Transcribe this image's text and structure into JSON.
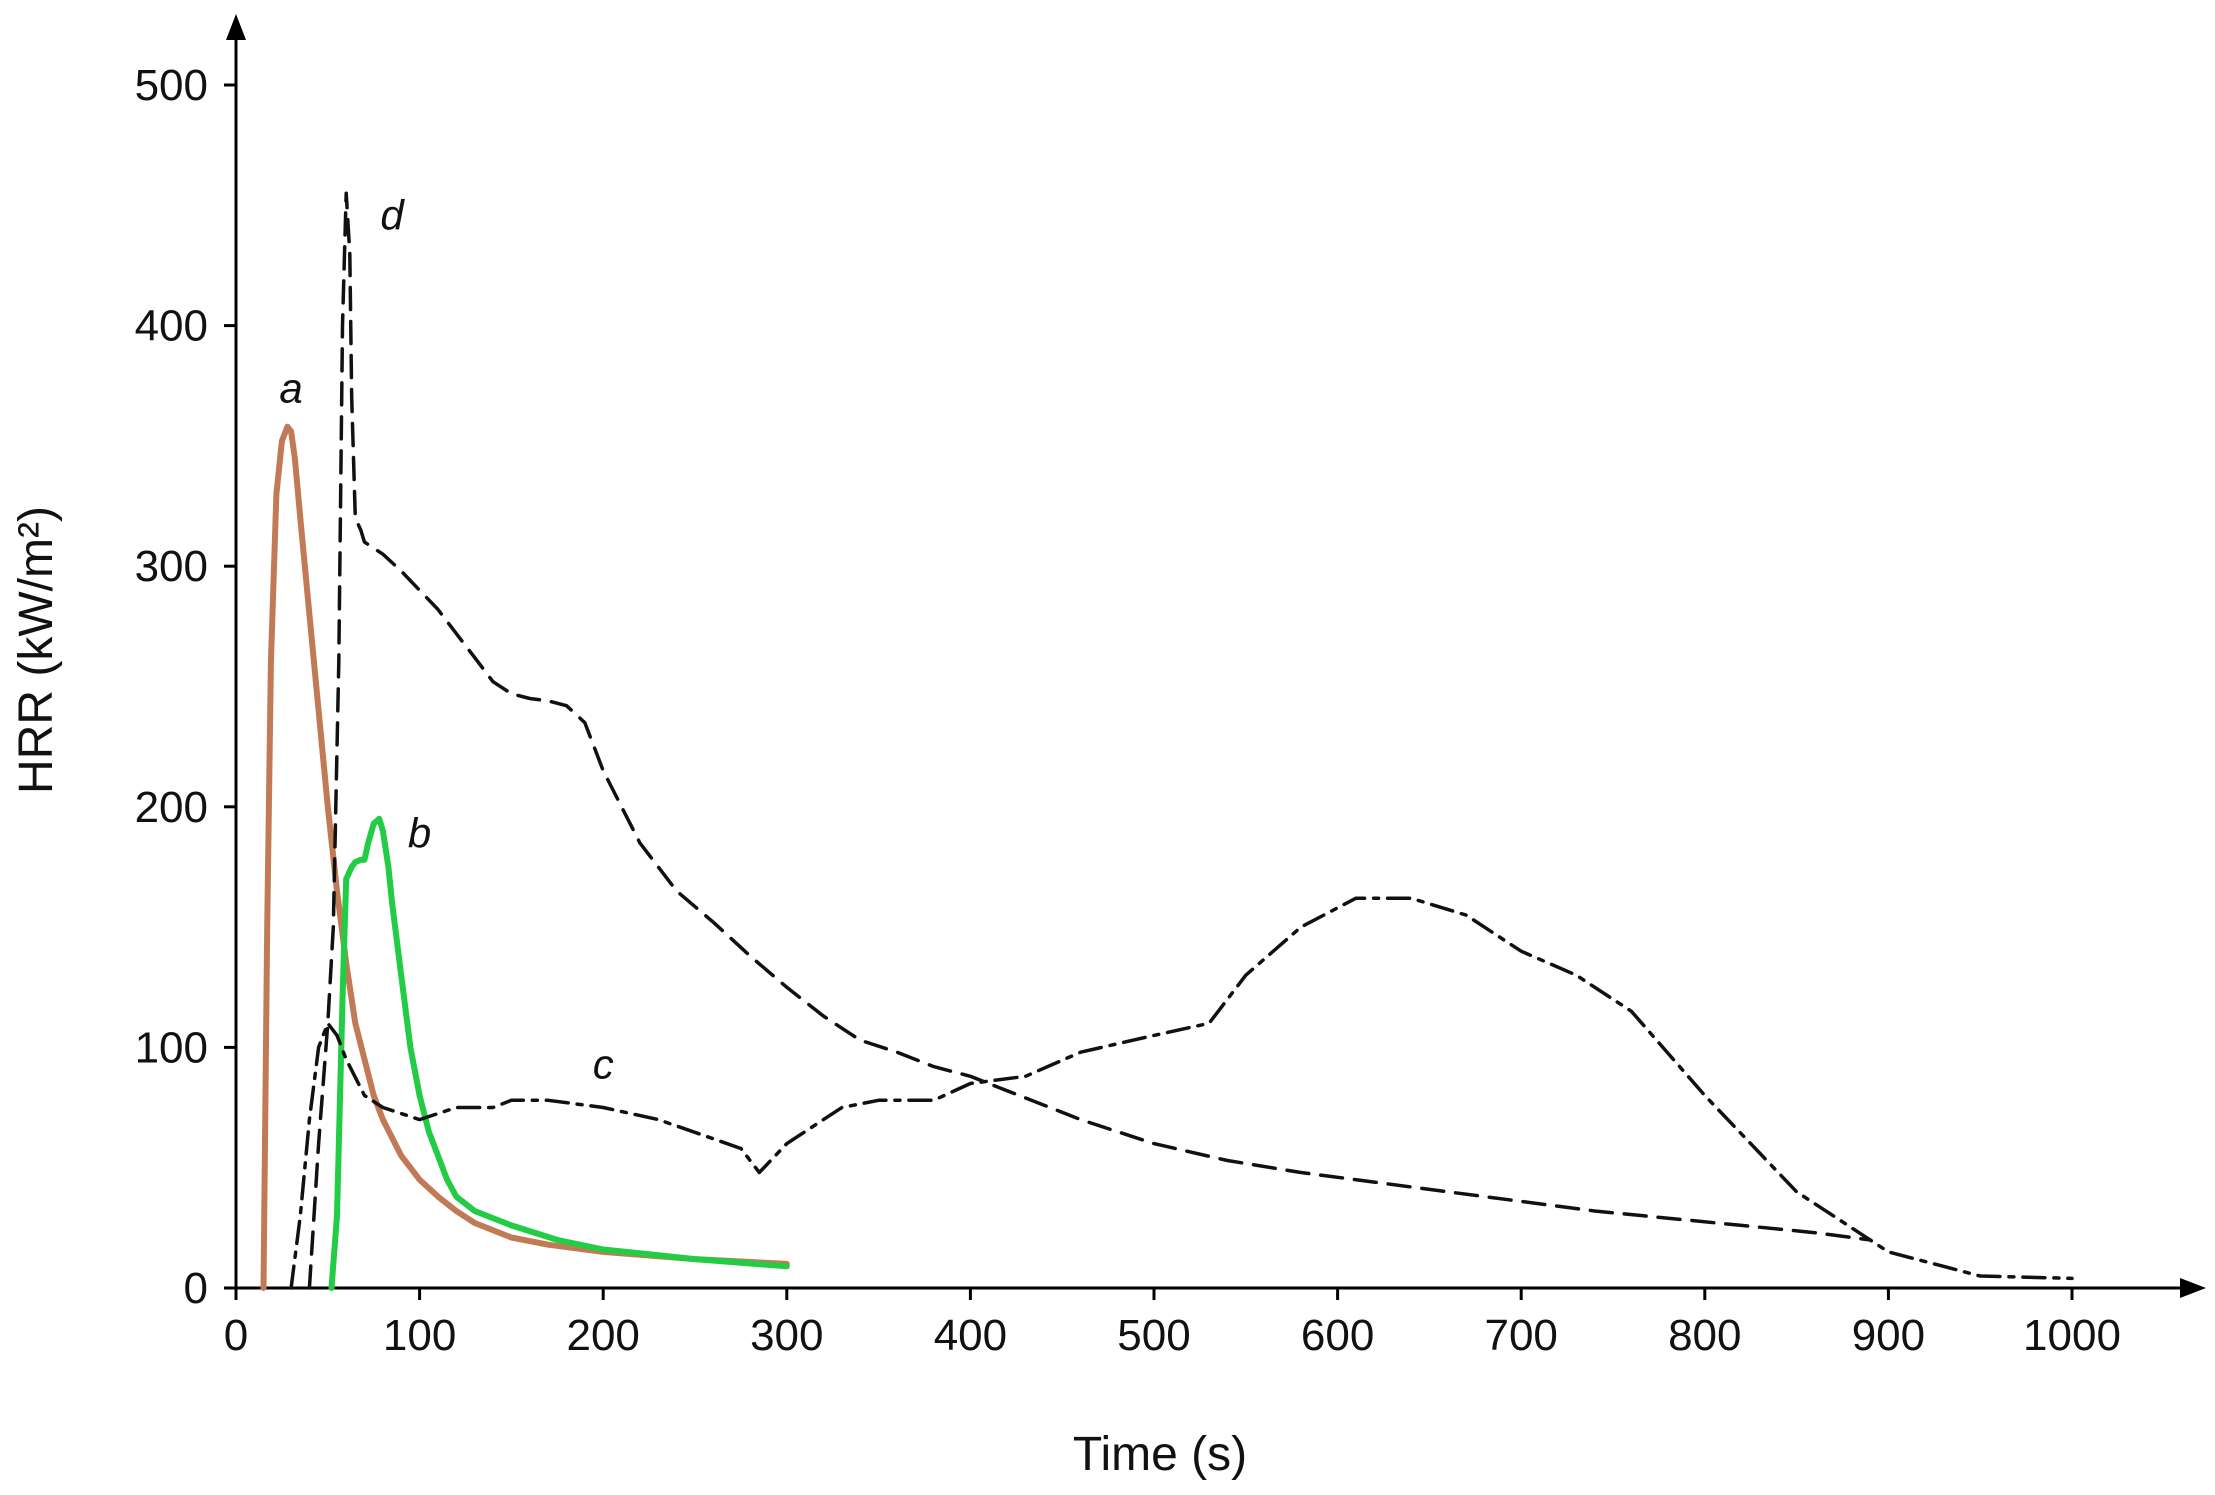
{
  "chart_data": {
    "type": "line",
    "title": "",
    "xlabel": "Time (s)",
    "ylabel": "HRR (kW/m²)",
    "xlim": [
      0,
      1060
    ],
    "ylim": [
      0,
      500
    ],
    "xticks": [
      0,
      100,
      200,
      300,
      400,
      500,
      600,
      700,
      800,
      900,
      1000
    ],
    "yticks": [
      0,
      100,
      200,
      300,
      400,
      500
    ],
    "grid": false,
    "series": [
      {
        "name": "a",
        "color": "#c17a55",
        "style": "solid",
        "x": [
          15,
          17,
          19,
          22,
          25,
          28,
          30,
          32,
          35,
          40,
          45,
          50,
          55,
          60,
          65,
          70,
          75,
          80,
          90,
          100,
          110,
          120,
          130,
          150,
          170,
          200,
          250,
          300
        ],
        "y": [
          0,
          150,
          260,
          330,
          352,
          358,
          356,
          345,
          320,
          280,
          240,
          200,
          165,
          135,
          110,
          95,
          80,
          70,
          55,
          45,
          38,
          32,
          27,
          21,
          18,
          15,
          12,
          10
        ]
      },
      {
        "name": "b",
        "color": "#22cc44",
        "style": "solid",
        "x": [
          52,
          55,
          58,
          60,
          63,
          65,
          68,
          70,
          72,
          75,
          78,
          80,
          83,
          85,
          90,
          95,
          100,
          105,
          110,
          115,
          120,
          130,
          150,
          175,
          200,
          250,
          300
        ],
        "y": [
          0,
          30,
          120,
          170,
          175,
          177,
          178,
          178,
          185,
          193,
          195,
          190,
          175,
          160,
          130,
          100,
          80,
          65,
          55,
          45,
          38,
          32,
          26,
          20,
          16,
          12,
          9
        ]
      },
      {
        "name": "c",
        "color": "#111111",
        "style": "dashdot",
        "x": [
          30,
          35,
          40,
          45,
          50,
          55,
          60,
          70,
          80,
          100,
          120,
          140,
          150,
          170,
          200,
          230,
          260,
          275,
          285,
          300,
          330,
          350,
          380,
          400,
          430,
          460,
          500,
          530,
          550,
          580,
          610,
          640,
          670,
          700,
          730,
          760,
          800,
          850,
          900,
          950,
          1000
        ],
        "y": [
          0,
          30,
          70,
          100,
          110,
          105,
          95,
          80,
          75,
          70,
          75,
          75,
          78,
          78,
          75,
          70,
          62,
          58,
          48,
          60,
          75,
          78,
          78,
          85,
          88,
          98,
          105,
          110,
          130,
          150,
          162,
          162,
          155,
          140,
          130,
          115,
          80,
          40,
          15,
          5,
          4
        ]
      },
      {
        "name": "d",
        "color": "#111111",
        "style": "dashed",
        "x": [
          40,
          45,
          50,
          53,
          56,
          58,
          60,
          62,
          63,
          65,
          68,
          70,
          80,
          90,
          100,
          110,
          120,
          130,
          140,
          150,
          160,
          170,
          180,
          190,
          200,
          220,
          240,
          260,
          280,
          300,
          320,
          340,
          360,
          380,
          400,
          420,
          440,
          460,
          480,
          500,
          540,
          580,
          620,
          660,
          700,
          740,
          780,
          820,
          860,
          890
        ],
        "y": [
          0,
          60,
          110,
          150,
          260,
          400,
          455,
          430,
          370,
          320,
          315,
          310,
          305,
          298,
          290,
          282,
          272,
          262,
          252,
          247,
          245,
          244,
          242,
          235,
          215,
          185,
          165,
          152,
          138,
          125,
          113,
          103,
          98,
          92,
          88,
          82,
          76,
          70,
          65,
          60,
          53,
          48,
          44,
          40,
          36,
          32,
          29,
          26,
          23,
          20
        ]
      }
    ],
    "annotations": [
      {
        "text": "a",
        "x": 30,
        "y": 368
      },
      {
        "text": "b",
        "x": 100,
        "y": 183
      },
      {
        "text": "c",
        "x": 200,
        "y": 87
      },
      {
        "text": "d",
        "x": 85,
        "y": 440
      }
    ]
  }
}
